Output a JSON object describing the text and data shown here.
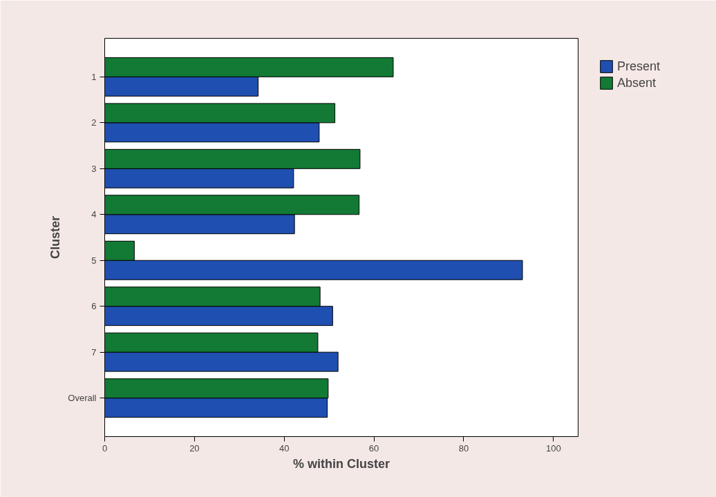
{
  "chart_data": {
    "type": "bar",
    "orientation": "horizontal",
    "xlabel": "% within Cluster",
    "ylabel": "Cluster",
    "categories": [
      "1",
      "2",
      "3",
      "4",
      "5",
      "6",
      "7",
      "Overall"
    ],
    "series": [
      {
        "name": "Present",
        "color": "#1f4fb0",
        "values": [
          34.2,
          47.8,
          42.1,
          42.3,
          93.1,
          50.8,
          52.0,
          49.6
        ]
      },
      {
        "name": "Absent",
        "color": "#127a35",
        "values": [
          64.3,
          51.3,
          56.9,
          56.7,
          6.6,
          48.0,
          47.5,
          49.8
        ]
      }
    ],
    "xlim": [
      0,
      105.5
    ],
    "xticks": [
      0,
      20,
      40,
      60,
      80,
      100
    ],
    "grid": false,
    "legend": "top right"
  }
}
